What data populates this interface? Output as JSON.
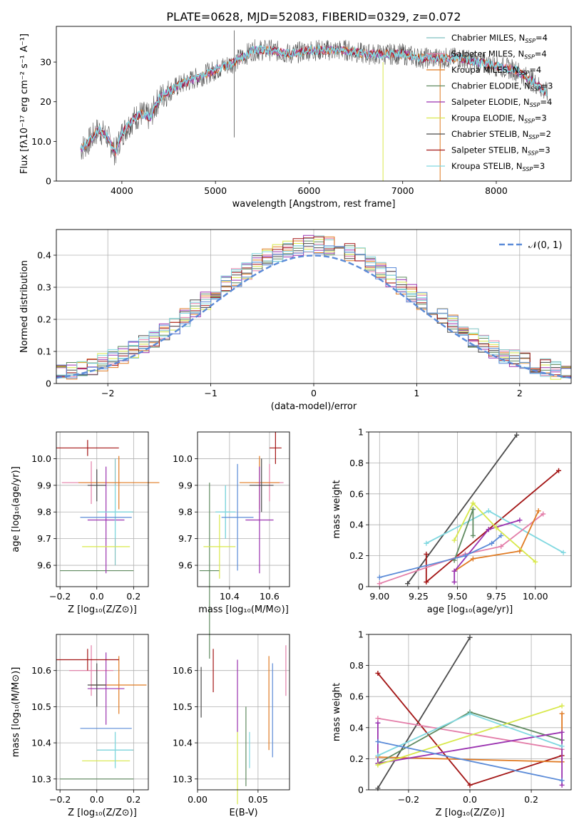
{
  "figure_title": "PLATE=0628, MJD=52083, FIBERID=0329, z=0.072",
  "colors": {
    "Chabrier MILES": "#7fc1c1",
    "Salpeter MILES": "#e37da8",
    "Kroupa MILES": "#e07a22",
    "Chabrier ELODIE": "#5f8a5f",
    "Salpeter ELODIE": "#9a32b0",
    "Kroupa ELODIE": "#d8e84a",
    "Chabrier STELIB": "#4a4a4a",
    "Salpeter STELIB": "#a31515",
    "Kroupa STELIB": "#80d8e0",
    "blue_fit": "#5b8bd8",
    "grid": "#b0b0b0"
  },
  "chart_data": [
    {
      "type": "line",
      "title": "PLATE=0628, MJD=52083, FIBERID=0329, z=0.072",
      "xlabel": "wavelength [Angstrom, rest frame]",
      "ylabel": "Flux [fλ10⁻¹⁷ erg cm⁻² s⁻¹ A⁻¹]",
      "xlim": [
        3300,
        8800
      ],
      "ylim": [
        0,
        39
      ],
      "xticks": [
        4000,
        5000,
        6000,
        7000,
        8000
      ],
      "yticks": [
        0,
        10,
        20,
        30
      ],
      "legend_position": "top-right",
      "legend": [
        {
          "label": "Chabrier MILES, N",
          "sub": "SSP",
          "suffix": "=4",
          "color": "#7fc1c1"
        },
        {
          "label": "Salpeter MILES, N",
          "sub": "SSP",
          "suffix": "=4",
          "color": "#e37da8"
        },
        {
          "label": "Kroupa MILES, N",
          "sub": "SSP",
          "suffix": "=4",
          "color": "#e07a22"
        },
        {
          "label": "Chabrier ELODIE, N",
          "sub": "SSP",
          "suffix": "=3",
          "color": "#5f8a5f"
        },
        {
          "label": "Salpeter ELODIE, N",
          "sub": "SSP",
          "suffix": "=4",
          "color": "#9a32b0"
        },
        {
          "label": "Kroupa ELODIE, N",
          "sub": "SSP",
          "suffix": "=3",
          "color": "#d8e84a"
        },
        {
          "label": "Chabrier STELIB, N",
          "sub": "SSP",
          "suffix": "=2",
          "color": "#4a4a4a"
        },
        {
          "label": "Salpeter STELIB, N",
          "sub": "SSP",
          "suffix": "=3",
          "color": "#a31515"
        },
        {
          "label": "Kroupa STELIB, N",
          "sub": "SSP",
          "suffix": "=3",
          "color": "#80d8e0"
        }
      ],
      "continuum_anchors": [
        [
          3560,
          8
        ],
        [
          3650,
          10
        ],
        [
          3750,
          13
        ],
        [
          3850,
          11
        ],
        [
          3930,
          7
        ],
        [
          4000,
          12
        ],
        [
          4100,
          15
        ],
        [
          4200,
          17
        ],
        [
          4300,
          16
        ],
        [
          4400,
          21
        ],
        [
          4600,
          24
        ],
        [
          4800,
          26
        ],
        [
          5000,
          28
        ],
        [
          5200,
          30
        ],
        [
          5400,
          33
        ],
        [
          5600,
          33
        ],
        [
          5800,
          32
        ],
        [
          6000,
          33
        ],
        [
          6200,
          33
        ],
        [
          6400,
          33
        ],
        [
          6600,
          32
        ],
        [
          6800,
          32
        ],
        [
          7000,
          32
        ],
        [
          7200,
          31
        ],
        [
          7400,
          31
        ],
        [
          7600,
          31
        ],
        [
          7800,
          30
        ],
        [
          8000,
          29
        ],
        [
          8200,
          28
        ],
        [
          8400,
          25
        ],
        [
          8550,
          22
        ]
      ],
      "x_range_observed": [
        3560,
        8550
      ]
    },
    {
      "type": "histogram",
      "xlabel": "(data-model)/error",
      "ylabel": "Normed distribution",
      "xlim": [
        -2.5,
        2.5
      ],
      "ylim": [
        0,
        0.48
      ],
      "xticks": [
        -2,
        -1,
        0,
        1,
        2
      ],
      "xtick_labels": [
        "−2",
        "−1",
        "0",
        "1",
        "2"
      ],
      "yticks": [
        0.0,
        0.1,
        0.2,
        0.3,
        0.4
      ],
      "grid": true,
      "legend_position": "top-right",
      "gaussian": {
        "label": "𝒩(0, 1)",
        "mean": 0,
        "sigma": 1
      },
      "bin_width": 0.1
    },
    {
      "type": "scatter",
      "xlabel": "Z [log₁₀(Z/Z⊙)]",
      "ylabel": "age  [log₁₀(age/yr)]",
      "xlim": [
        -0.22,
        0.28
      ],
      "ylim": [
        9.52,
        10.1
      ],
      "xticks": [
        -0.2,
        0.0,
        0.2
      ],
      "xtick_labels": [
        "−0.2",
        "0.0",
        "0.2"
      ],
      "yticks": [
        9.6,
        9.7,
        9.8,
        9.9,
        10.0
      ],
      "grid": true,
      "errorbars": [
        {
          "model": "Chabrier MILES",
          "x": 0.1,
          "y": 9.8,
          "xerr": 0.1,
          "yerr": 0.2
        },
        {
          "model": "Salpeter MILES",
          "x": -0.03,
          "y": 9.91,
          "xerr": 0.16,
          "yerr": 0.08
        },
        {
          "model": "Kroupa MILES",
          "x": 0.12,
          "y": 9.91,
          "xerr": 0.22,
          "yerr": 0.1
        },
        {
          "model": "Chabrier ELODIE",
          "x": 0.0,
          "y": 9.58,
          "xerr": 0.2,
          "yerr": 0.0
        },
        {
          "model": "Salpeter ELODIE",
          "x": 0.05,
          "y": 9.77,
          "xerr": 0.1,
          "yerr": 0.2
        },
        {
          "model": "Kroupa ELODIE",
          "x": 0.05,
          "y": 9.67,
          "xerr": 0.13,
          "yerr": 0.0
        },
        {
          "model": "Chabrier STELIB",
          "x": 0.0,
          "y": 9.9,
          "xerr": 0.05,
          "yerr": 0.06
        },
        {
          "model": "Salpeter STELIB",
          "x": -0.05,
          "y": 10.04,
          "xerr": 0.17,
          "yerr": 0.03
        },
        {
          "model": "Kroupa STELIB",
          "x": 0.1,
          "y": 9.8,
          "xerr": 0.09,
          "yerr": 0.1
        },
        {
          "model": "blue_fit",
          "x": 0.05,
          "y": 9.78,
          "xerr": 0.14,
          "yerr": 0.0
        }
      ]
    },
    {
      "type": "scatter",
      "xlabel": "mass [log₁₀(M/M⊙)]",
      "ylabel": "",
      "xlim": [
        10.24,
        10.7
      ],
      "ylim": [
        9.52,
        10.1
      ],
      "xticks": [
        10.4,
        10.6
      ],
      "yticks": [
        9.6,
        9.7,
        9.8,
        9.9,
        10.0
      ],
      "grid": true,
      "errorbars": [
        {
          "model": "Chabrier MILES",
          "x": 10.38,
          "y": 9.8,
          "xerr": 0.05,
          "yerr": 0.1
        },
        {
          "model": "Salpeter MILES",
          "x": 10.6,
          "y": 9.91,
          "xerr": 0.07,
          "yerr": 0.07
        },
        {
          "model": "Kroupa MILES",
          "x": 10.55,
          "y": 9.91,
          "xerr": 0.1,
          "yerr": 0.1
        },
        {
          "model": "Chabrier ELODIE",
          "x": 10.3,
          "y": 9.58,
          "xerr": 0.05,
          "yerr": 0.33
        },
        {
          "model": "Salpeter ELODIE",
          "x": 10.55,
          "y": 9.77,
          "xerr": 0.07,
          "yerr": 0.2
        },
        {
          "model": "Kroupa ELODIE",
          "x": 10.35,
          "y": 9.67,
          "xerr": 0.08,
          "yerr": 0.12
        },
        {
          "model": "Chabrier STELIB",
          "x": 10.56,
          "y": 9.9,
          "xerr": 0.06,
          "yerr": 0.1
        },
        {
          "model": "Salpeter STELIB",
          "x": 10.63,
          "y": 10.04,
          "xerr": 0.03,
          "yerr": 0.06
        },
        {
          "model": "Kroupa STELIB",
          "x": 10.38,
          "y": 9.8,
          "xerr": 0.05,
          "yerr": 0.1
        },
        {
          "model": "blue_fit",
          "x": 10.44,
          "y": 9.78,
          "xerr": 0.08,
          "yerr": 0.2
        }
      ]
    },
    {
      "type": "line",
      "xlabel": "age  [log₁₀(age/yr)]",
      "ylabel": "mass weight",
      "xlim": [
        8.93,
        10.23
      ],
      "ylim": [
        0,
        1.0
      ],
      "xticks": [
        9.0,
        9.25,
        9.5,
        9.75,
        10.0
      ],
      "xtick_labels": [
        "9.00",
        "9.25",
        "9.50",
        "9.75",
        "10.00"
      ],
      "yticks": [
        0.0,
        0.2,
        0.4,
        0.6,
        0.8,
        1.0
      ],
      "grid": true,
      "series": [
        {
          "model": "Chabrier STELIB",
          "x": [
            9.18,
            9.88
          ],
          "y": [
            0.02,
            0.98
          ]
        },
        {
          "model": "Salpeter STELIB",
          "x": [
            9.3,
            9.3,
            9.7,
            10.15
          ],
          "y": [
            0.21,
            0.03,
            0.37,
            0.75
          ]
        },
        {
          "model": "Kroupa STELIB",
          "x": [
            9.3,
            9.7,
            10.18
          ],
          "y": [
            0.28,
            0.49,
            0.22
          ]
        },
        {
          "model": "Salpeter MILES",
          "x": [
            9.0,
            9.55,
            9.78,
            10.05
          ],
          "y": [
            0.02,
            0.21,
            0.26,
            0.47
          ]
        },
        {
          "model": "Kroupa MILES",
          "x": [
            9.48,
            9.6,
            9.9,
            10.02
          ],
          "y": [
            0.1,
            0.18,
            0.23,
            0.49
          ]
        },
        {
          "model": "Chabrier ELODIE",
          "x": [
            9.48,
            9.6,
            9.6
          ],
          "y": [
            0.17,
            0.5,
            0.33
          ]
        },
        {
          "model": "Salpeter ELODIE",
          "x": [
            9.48,
            9.48,
            9.7,
            9.9
          ],
          "y": [
            0.03,
            0.1,
            0.37,
            0.43
          ]
        },
        {
          "model": "Kroupa ELODIE",
          "x": [
            9.48,
            9.6,
            9.75,
            10.0
          ],
          "y": [
            0.3,
            0.54,
            0.38,
            0.16
          ]
        },
        {
          "model": "blue_fit",
          "x": [
            9.0,
            9.55,
            9.72,
            9.78
          ],
          "y": [
            0.06,
            0.2,
            0.28,
            0.33
          ]
        }
      ]
    },
    {
      "type": "scatter",
      "xlabel": "Z [log₁₀(Z/Z⊙)]",
      "ylabel": "mass [log₁₀(M/M⊙)]",
      "xlim": [
        -0.22,
        0.28
      ],
      "ylim": [
        10.27,
        10.7
      ],
      "xticks": [
        -0.2,
        0.0,
        0.2
      ],
      "xtick_labels": [
        "−0.2",
        "0.0",
        "0.2"
      ],
      "yticks": [
        10.3,
        10.4,
        10.5,
        10.6
      ],
      "grid": true,
      "errorbars": [
        {
          "model": "Chabrier MILES",
          "x": 0.1,
          "y": 10.38,
          "xerr": 0.1,
          "yerr": 0.05
        },
        {
          "model": "Salpeter MILES",
          "x": -0.03,
          "y": 10.6,
          "xerr": 0.12,
          "yerr": 0.07
        },
        {
          "model": "Kroupa MILES",
          "x": 0.12,
          "y": 10.56,
          "xerr": 0.15,
          "yerr": 0.08
        },
        {
          "model": "Chabrier ELODIE",
          "x": 0.0,
          "y": 10.3,
          "xerr": 0.2,
          "yerr": 0.0
        },
        {
          "model": "Salpeter ELODIE",
          "x": 0.05,
          "y": 10.55,
          "xerr": 0.1,
          "yerr": 0.1
        },
        {
          "model": "Kroupa ELODIE",
          "x": 0.05,
          "y": 10.35,
          "xerr": 0.13,
          "yerr": 0.0
        },
        {
          "model": "Chabrier STELIB",
          "x": 0.0,
          "y": 10.56,
          "xerr": 0.05,
          "yerr": 0.06
        },
        {
          "model": "Salpeter STELIB",
          "x": -0.05,
          "y": 10.63,
          "xerr": 0.17,
          "yerr": 0.03
        },
        {
          "model": "Kroupa STELIB",
          "x": 0.1,
          "y": 10.38,
          "xerr": 0.09,
          "yerr": 0.05
        },
        {
          "model": "blue_fit",
          "x": 0.05,
          "y": 10.44,
          "xerr": 0.14,
          "yerr": 0.0
        }
      ]
    },
    {
      "type": "scatter",
      "xlabel": "E(B-V)",
      "ylabel": "",
      "xlim": [
        0.0,
        0.076
      ],
      "ylim": [
        10.27,
        10.7
      ],
      "xticks": [
        0.0,
        0.05
      ],
      "xtick_labels": [
        "0.00",
        "0.05"
      ],
      "yticks": [
        10.3,
        10.4,
        10.5,
        10.6
      ],
      "grid": true,
      "errorbars": [
        {
          "model": "Chabrier STELIB",
          "x": 0.003,
          "y": 10.54,
          "xerr": 0,
          "yerr": 0.07
        },
        {
          "model": "Salpeter STELIB",
          "x": 0.013,
          "y": 10.6,
          "xerr": 0,
          "yerr": 0.06
        },
        {
          "model": "Salpeter ELODIE",
          "x": 0.033,
          "y": 10.53,
          "xerr": 0,
          "yerr": 0.1
        },
        {
          "model": "Kroupa ELODIE",
          "x": 0.033,
          "y": 10.33,
          "xerr": 0,
          "yerr": 0.1
        },
        {
          "model": "Chabrier ELODIE",
          "x": 0.04,
          "y": 10.39,
          "xerr": 0,
          "yerr": 0.11
        },
        {
          "model": "Kroupa STELIB",
          "x": 0.043,
          "y": 10.38,
          "xerr": 0,
          "yerr": 0.05
        },
        {
          "model": "Kroupa MILES",
          "x": 0.059,
          "y": 10.51,
          "xerr": 0,
          "yerr": 0.13
        },
        {
          "model": "blue_fit",
          "x": 0.062,
          "y": 10.49,
          "xerr": 0,
          "yerr": 0.13
        },
        {
          "model": "Salpeter MILES",
          "x": 0.073,
          "y": 10.6,
          "xerr": 0,
          "yerr": 0.07
        }
      ]
    },
    {
      "type": "line",
      "xlabel": "Z [log₁₀(Z/Z⊙)]",
      "ylabel": "mass weight",
      "xlim": [
        -0.33,
        0.33
      ],
      "ylim": [
        0,
        1.0
      ],
      "xticks": [
        -0.2,
        0.0,
        0.2
      ],
      "xtick_labels": [
        "−0.2",
        "0.0",
        "0.2"
      ],
      "yticks": [
        0.0,
        0.2,
        0.4,
        0.6,
        0.8,
        1.0
      ],
      "grid": true,
      "series": [
        {
          "model": "Chabrier STELIB",
          "x": [
            -0.3,
            0.0
          ],
          "y": [
            0.01,
            0.98
          ]
        },
        {
          "model": "Salpeter STELIB",
          "x": [
            -0.3,
            0.0,
            0.3
          ],
          "y": [
            0.75,
            0.03,
            0.22
          ]
        },
        {
          "model": "Salpeter MILES",
          "x": [
            -0.3,
            0.3
          ],
          "y": [
            0.46,
            0.26
          ]
        },
        {
          "model": "Kroupa MILES",
          "x": [
            -0.3,
            0.3,
            0.3
          ],
          "y": [
            0.21,
            0.18,
            0.49
          ]
        },
        {
          "model": "Chabrier ELODIE",
          "x": [
            -0.3,
            0.0,
            0.3
          ],
          "y": [
            0.17,
            0.5,
            0.32
          ]
        },
        {
          "model": "Salpeter ELODIE",
          "x": [
            -0.3,
            -0.3,
            0.3,
            0.3
          ],
          "y": [
            0.43,
            0.17,
            0.37,
            0.03
          ]
        },
        {
          "model": "Kroupa ELODIE",
          "x": [
            -0.3,
            0.3
          ],
          "y": [
            0.16,
            0.54
          ]
        },
        {
          "model": "Kroupa STELIB",
          "x": [
            -0.3,
            0.0,
            0.3
          ],
          "y": [
            0.22,
            0.49,
            0.28
          ]
        },
        {
          "model": "blue_fit",
          "x": [
            -0.3,
            0.3
          ],
          "y": [
            0.31,
            0.06
          ]
        }
      ]
    }
  ]
}
